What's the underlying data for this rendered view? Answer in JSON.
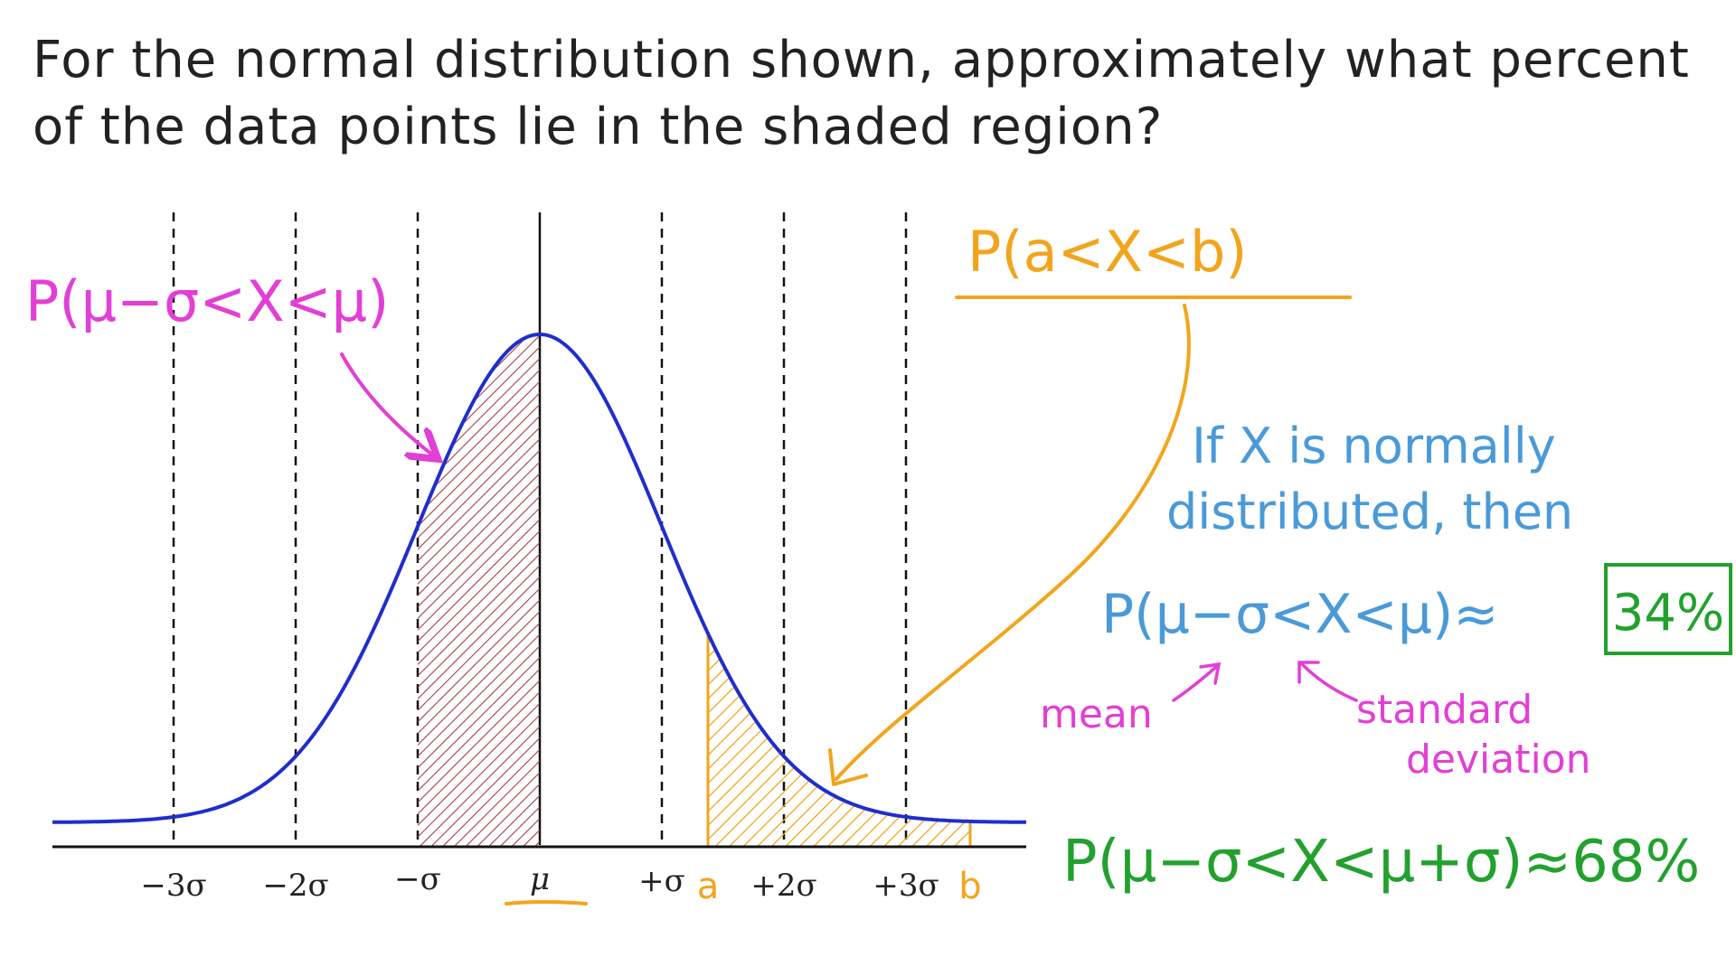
{
  "question": {
    "line1": "For the normal distribution shown, approximately what percent",
    "line2": "of the data points lie in the shaded region?"
  },
  "axis": {
    "ticks": [
      "−3σ",
      "−2σ",
      "−σ",
      "μ",
      "+σ",
      "+2σ",
      "+3σ"
    ],
    "point_a": "a",
    "point_b": "b"
  },
  "annotations": {
    "pink_label": "P(μ−σ<X<μ)",
    "orange_label": "P(a<X<b)",
    "blue_line1": "If X is normally",
    "blue_line2": "distributed, then",
    "blue_formula": "P(μ−σ<X<μ)≈",
    "boxed_answer": "34%",
    "mean_label": "mean",
    "sd_label_line1": "standard",
    "sd_label_line2": "deviation",
    "green_formula": "P(μ−σ<X<μ+σ)≈68%"
  },
  "colors": {
    "curve": "#1f2ecc",
    "pink": "#e23fd6",
    "orange": "#f2a51c",
    "blue": "#4a9ad8",
    "green": "#22a12e",
    "shade_left": "#a33f3f"
  }
}
